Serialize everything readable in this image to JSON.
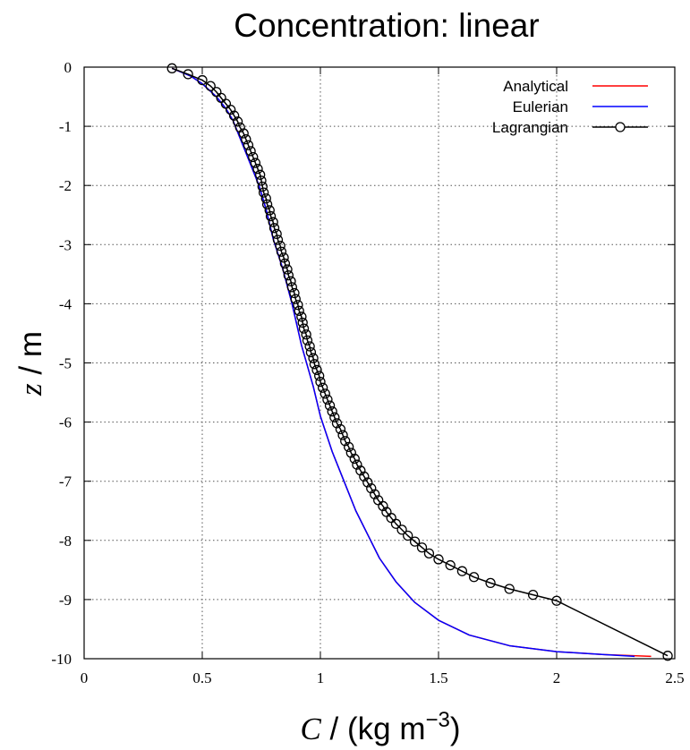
{
  "chart_data": {
    "type": "line",
    "title": "Concentration: linear",
    "xlabel": {
      "variable": "C",
      "rest": " / (kg m",
      "exponent": "−3",
      "close": ")"
    },
    "ylabel": {
      "variable": "z",
      "rest": " / m"
    },
    "xlim": [
      0,
      2.5
    ],
    "ylim": [
      -10,
      0
    ],
    "xticks": [
      "0",
      "0.5",
      "1",
      "1.5",
      "2",
      "2.5"
    ],
    "yticks": [
      "0",
      "-1",
      "-2",
      "-3",
      "-4",
      "-5",
      "-6",
      "-7",
      "-8",
      "-9",
      "-10"
    ],
    "grid": true,
    "legend_position": "top-right",
    "colors": {
      "analytical": "#ff0000",
      "eulerian": "#0000ff",
      "lagrangian": "#000000"
    },
    "series": [
      {
        "name": "Analytical",
        "style": "line",
        "x": [
          0.372,
          0.45,
          0.5,
          0.56,
          0.6,
          0.63,
          0.66,
          0.7,
          0.74,
          0.77,
          0.8,
          0.84,
          0.88,
          0.92,
          0.97,
          1.0,
          1.05,
          1.1,
          1.15,
          1.2,
          1.25,
          1.32,
          1.4,
          1.5,
          1.63,
          1.8,
          2.0,
          2.2,
          2.4
        ],
        "y": [
          -0.02,
          -0.15,
          -0.28,
          -0.5,
          -0.7,
          -0.9,
          -1.2,
          -1.6,
          -2.0,
          -2.4,
          -2.9,
          -3.4,
          -4.0,
          -4.7,
          -5.4,
          -5.9,
          -6.5,
          -7.0,
          -7.5,
          -7.9,
          -8.3,
          -8.7,
          -9.05,
          -9.35,
          -9.6,
          -9.78,
          -9.88,
          -9.93,
          -9.96
        ]
      },
      {
        "name": "Eulerian",
        "style": "line",
        "x": [
          0.372,
          0.45,
          0.5,
          0.56,
          0.6,
          0.63,
          0.66,
          0.7,
          0.74,
          0.77,
          0.8,
          0.84,
          0.88,
          0.92,
          0.97,
          1.0,
          1.05,
          1.1,
          1.15,
          1.2,
          1.25,
          1.32,
          1.4,
          1.5,
          1.63,
          1.8,
          2.0,
          2.2,
          2.33
        ],
        "y": [
          -0.02,
          -0.15,
          -0.28,
          -0.5,
          -0.7,
          -0.9,
          -1.2,
          -1.6,
          -2.0,
          -2.4,
          -2.9,
          -3.4,
          -4.0,
          -4.7,
          -5.4,
          -5.9,
          -6.5,
          -7.0,
          -7.5,
          -7.9,
          -8.3,
          -8.7,
          -9.05,
          -9.35,
          -9.6,
          -9.78,
          -9.88,
          -9.93,
          -9.96
        ]
      },
      {
        "name": "Lagrangian",
        "style": "line+circle",
        "x": [
          0.372,
          0.44,
          0.5,
          0.535,
          0.56,
          0.58,
          0.6,
          0.62,
          0.635,
          0.65,
          0.66,
          0.675,
          0.685,
          0.695,
          0.705,
          0.715,
          0.725,
          0.735,
          0.745,
          0.75,
          0.755,
          0.76,
          0.77,
          0.775,
          0.785,
          0.79,
          0.8,
          0.805,
          0.815,
          0.82,
          0.83,
          0.835,
          0.845,
          0.85,
          0.86,
          0.865,
          0.875,
          0.88,
          0.89,
          0.895,
          0.905,
          0.91,
          0.92,
          0.925,
          0.93,
          0.94,
          0.945,
          0.955,
          0.96,
          0.97,
          0.975,
          0.985,
          0.995,
          1.0,
          1.01,
          1.02,
          1.03,
          1.04,
          1.05,
          1.06,
          1.07,
          1.085,
          1.095,
          1.105,
          1.12,
          1.13,
          1.145,
          1.155,
          1.17,
          1.185,
          1.2,
          1.215,
          1.23,
          1.245,
          1.265,
          1.28,
          1.3,
          1.32,
          1.345,
          1.37,
          1.4,
          1.43,
          1.46,
          1.5,
          1.55,
          1.6,
          1.65,
          1.72,
          1.8,
          1.9,
          2.0,
          2.47
        ],
        "y": [
          -0.02,
          -0.12,
          -0.22,
          -0.32,
          -0.42,
          -0.52,
          -0.62,
          -0.72,
          -0.82,
          -0.92,
          -1.02,
          -1.12,
          -1.22,
          -1.32,
          -1.42,
          -1.52,
          -1.62,
          -1.72,
          -1.82,
          -1.92,
          -2.02,
          -2.12,
          -2.22,
          -2.32,
          -2.42,
          -2.52,
          -2.62,
          -2.72,
          -2.82,
          -2.92,
          -3.02,
          -3.12,
          -3.22,
          -3.32,
          -3.42,
          -3.52,
          -3.62,
          -3.72,
          -3.82,
          -3.92,
          -4.02,
          -4.12,
          -4.22,
          -4.32,
          -4.42,
          -4.52,
          -4.62,
          -4.72,
          -4.82,
          -4.92,
          -5.02,
          -5.12,
          -5.22,
          -5.32,
          -5.42,
          -5.52,
          -5.62,
          -5.72,
          -5.82,
          -5.92,
          -6.02,
          -6.12,
          -6.22,
          -6.32,
          -6.42,
          -6.52,
          -6.62,
          -6.72,
          -6.82,
          -6.92,
          -7.02,
          -7.12,
          -7.22,
          -7.32,
          -7.42,
          -7.52,
          -7.62,
          -7.72,
          -7.82,
          -7.92,
          -8.02,
          -8.12,
          -8.22,
          -8.32,
          -8.42,
          -8.52,
          -8.62,
          -8.72,
          -8.82,
          -8.92,
          -9.02,
          -9.95
        ]
      }
    ]
  }
}
